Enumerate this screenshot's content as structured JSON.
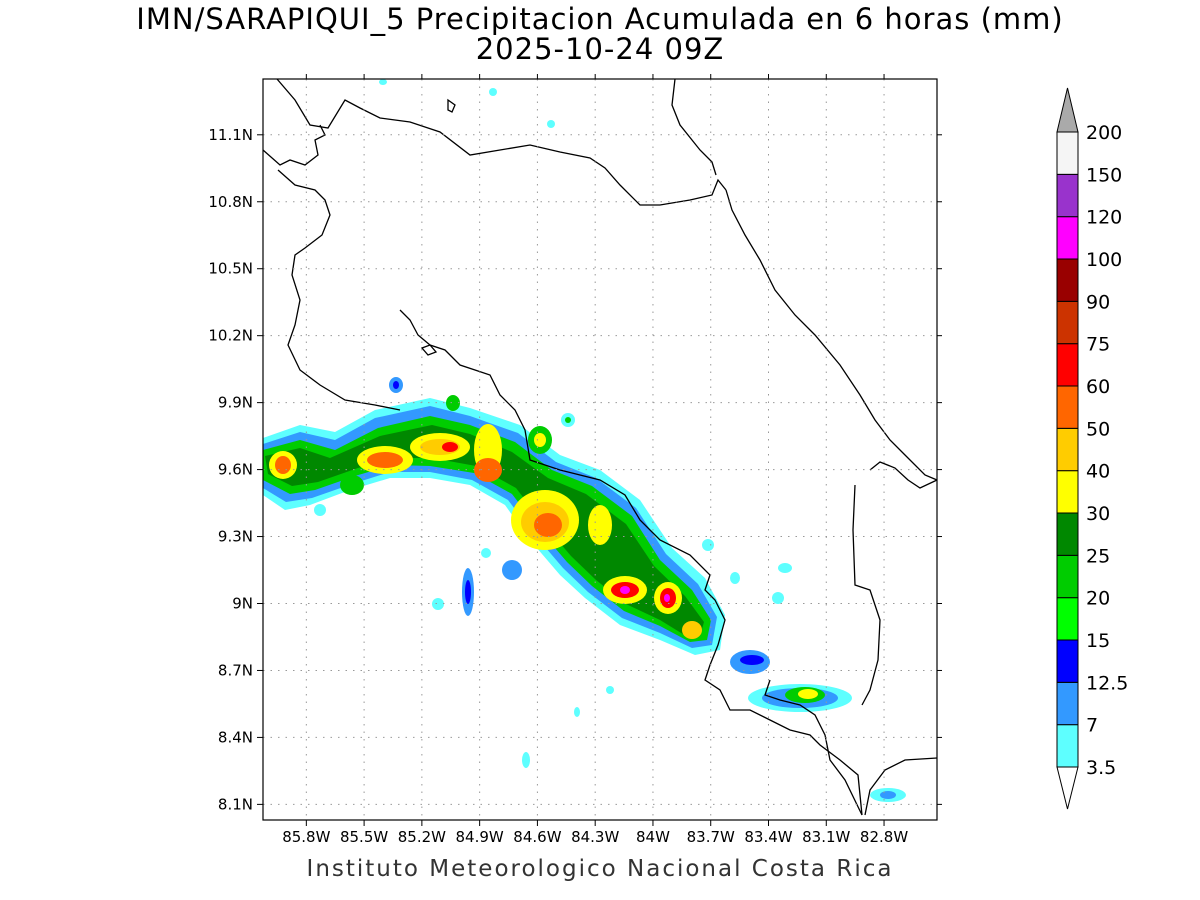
{
  "title_line1": "IMN/SARAPIQUI_5 Precipitacion Acumulada en 6 horas (mm)",
  "title_line2": "2025-10-24 09Z",
  "footer": "Instituto Meteorologico Nacional Costa Rica",
  "map": {
    "lon_range": [
      -86.025,
      -82.525
    ],
    "lat_range": [
      8.03,
      11.35
    ],
    "x_ticks": [
      "85.8W",
      "85.5W",
      "85.2W",
      "84.9W",
      "84.6W",
      "84.3W",
      "84W",
      "83.7W",
      "83.4W",
      "83.1W",
      "82.8W"
    ],
    "x_tick_values": [
      -85.8,
      -85.5,
      -85.2,
      -84.9,
      -84.6,
      -84.3,
      -84.0,
      -83.7,
      -83.4,
      -83.1,
      -82.8
    ],
    "y_ticks": [
      "11.1N",
      "10.8N",
      "10.5N",
      "10.2N",
      "9.9N",
      "9.6N",
      "9.3N",
      "9N",
      "8.7N",
      "8.4N",
      "8.1N"
    ],
    "y_tick_values": [
      11.1,
      10.8,
      10.5,
      10.2,
      9.9,
      9.6,
      9.3,
      9.0,
      8.7,
      8.4,
      8.1
    ],
    "grid": "dotted"
  },
  "colorbar": {
    "labels": [
      "3.5",
      "7",
      "12.5",
      "15",
      "20",
      "25",
      "30",
      "40",
      "50",
      "60",
      "75",
      "90",
      "100",
      "120",
      "150",
      "200"
    ],
    "colors": [
      "#ffffff",
      "#5effff",
      "#3399ff",
      "#0000ff",
      "#00ff00",
      "#00cc00",
      "#008800",
      "#ffff00",
      "#ffcc00",
      "#ff6600",
      "#ff0000",
      "#cc3300",
      "#990000",
      "#ff00ff",
      "#9933cc",
      "#f5f5f5"
    ],
    "top_arrow_color": "#aaaaaa",
    "bottom_arrow_color": "#ffffff"
  }
}
